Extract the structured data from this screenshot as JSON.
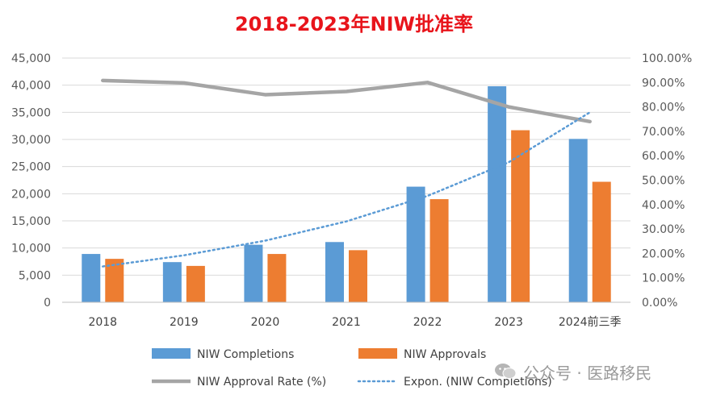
{
  "chart_data": {
    "type": "bar",
    "title": "2018-2023年NIW批准率",
    "categories": [
      "2018",
      "2019",
      "2020",
      "2021",
      "2022",
      "2023",
      "2024前三季"
    ],
    "series": [
      {
        "name": "NIW Completions",
        "kind": "bar",
        "axis": "left",
        "color": "#5b9bd5",
        "values": [
          8900,
          7400,
          10600,
          11100,
          21300,
          39800,
          30100
        ]
      },
      {
        "name": "NIW Approvals",
        "kind": "bar",
        "axis": "left",
        "color": "#ed7d31",
        "values": [
          8000,
          6700,
          8900,
          9600,
          19000,
          31700,
          22200
        ]
      },
      {
        "name": "NIW Approval Rate (%)",
        "kind": "line",
        "axis": "right",
        "color": "#a5a5a5",
        "values": [
          90.8,
          89.8,
          85.0,
          86.3,
          90.0,
          80.0,
          74.0
        ]
      },
      {
        "name": "Expon. (NIW Completions)",
        "kind": "trendline",
        "axis": "left",
        "color": "#5b9bd5",
        "values": [
          6600,
          8650,
          11350,
          14900,
          19600,
          25800,
          35000
        ]
      }
    ],
    "y_left": {
      "min": 0,
      "max": 45000,
      "step": 5000,
      "tick_labels": [
        "0",
        "5,000",
        "10,000",
        "15,000",
        "20,000",
        "25,000",
        "30,000",
        "35,000",
        "40,000",
        "45,000"
      ]
    },
    "y_right": {
      "min": 0,
      "max": 100,
      "step": 10,
      "tick_labels": [
        "0.00%",
        "10.00%",
        "20.00%",
        "30.00%",
        "40.00%",
        "50.00%",
        "60.00%",
        "70.00%",
        "80.00%",
        "90.00%",
        "100.00%"
      ]
    },
    "grid": true,
    "legend_position": "bottom"
  },
  "watermark": {
    "text": "公众号 · 医路移民",
    "icon": "wechat-icon"
  }
}
